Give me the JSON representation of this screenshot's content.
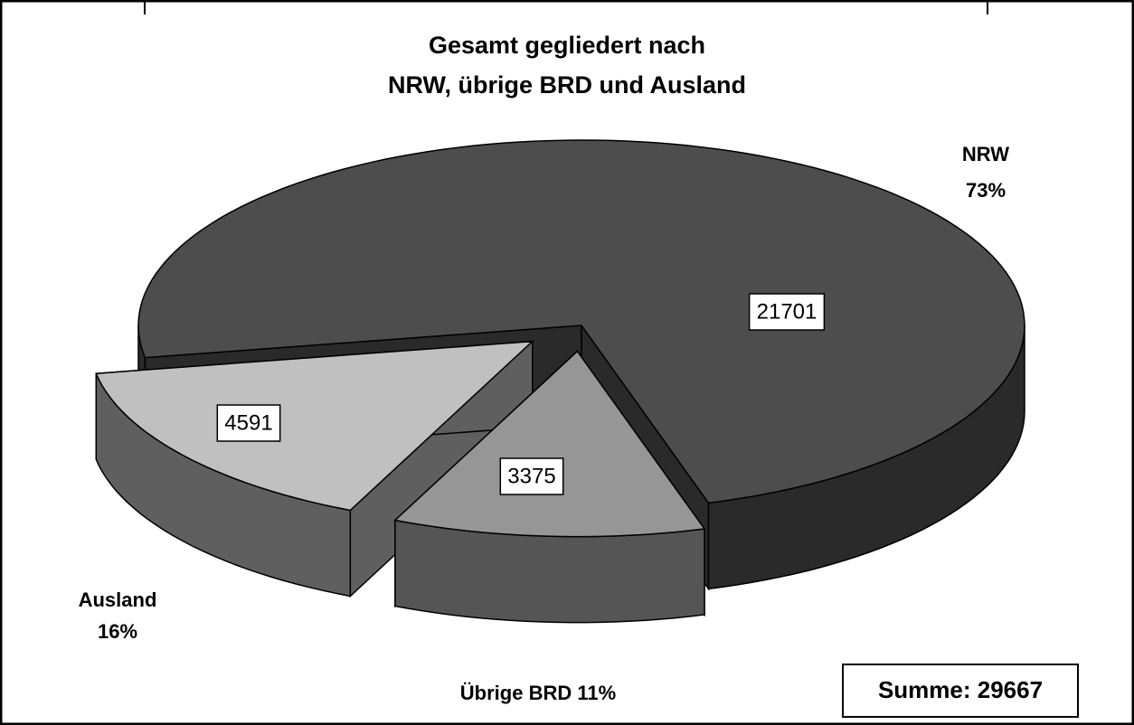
{
  "chart_data": {
    "type": "pie",
    "style": "3d",
    "title": [
      "Gesamt gegliedert nach",
      "NRW, übrige BRD und Ausland"
    ],
    "categories": [
      "NRW",
      "Übrige BRD",
      "Ausland"
    ],
    "values": [
      21701,
      3375,
      4591
    ],
    "percent_values": [
      73,
      11,
      16
    ],
    "percent_labels": [
      "73%",
      "11%",
      "16%"
    ],
    "colors": [
      "#4d4d4d",
      "#969696",
      "#c0c0c0"
    ],
    "side_colors": [
      "#2a2a2a",
      "#555555",
      "#5f5f5f"
    ],
    "annotation": "Summe: 29667"
  }
}
